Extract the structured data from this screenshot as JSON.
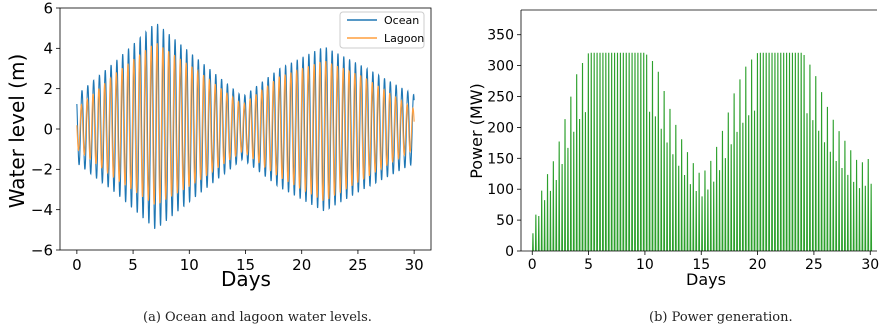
{
  "chart_data": [
    {
      "type": "line",
      "caption": "(a) Ocean and lagoon water levels.",
      "title": "",
      "xlabel": "Days",
      "ylabel": "Water level (m)",
      "xlim": [
        -1.5,
        31.5
      ],
      "ylim": [
        -6,
        6
      ],
      "x_ticks": [
        0,
        5,
        10,
        15,
        20,
        25,
        30
      ],
      "y_ticks": [
        -6,
        -4,
        -2,
        0,
        2,
        4,
        6
      ],
      "legend_position": "top-right",
      "grid": false,
      "series": [
        {
          "name": "Ocean",
          "color": "#1f77b4",
          "wave_period_days": 0.5175,
          "envelope_days": [
            0,
            3.5,
            7,
            10.5,
            14.75,
            18,
            22,
            25.5,
            30
          ],
          "envelope_max": [
            1.7,
            3.4,
            5.3,
            3.6,
            1.6,
            3.0,
            4.1,
            3.1,
            1.7
          ],
          "envelope_min": [
            -1.7,
            -3.2,
            -5.0,
            -3.4,
            -1.5,
            -2.9,
            -4.1,
            -3.0,
            -1.7
          ]
        },
        {
          "name": "Lagoon",
          "color": "#ff9f3f",
          "wave_period_days": 0.5175,
          "envelope_days": [
            0,
            3.5,
            7,
            10.5,
            14.75,
            18,
            22,
            25.5,
            30
          ],
          "envelope_max": [
            1.0,
            2.8,
            4.3,
            3.0,
            1.2,
            2.6,
            3.4,
            2.6,
            1.0
          ],
          "envelope_min": [
            -1.0,
            -2.5,
            -3.8,
            -2.7,
            -1.1,
            -2.4,
            -3.6,
            -2.5,
            -1.0
          ]
        }
      ]
    },
    {
      "type": "bar",
      "caption": "(b) Power generation.",
      "title": "",
      "xlabel": "Days",
      "ylabel": "Power (MW)",
      "xlim": [
        -1,
        30.6
      ],
      "ylim": [
        0,
        390
      ],
      "x_ticks": [
        0,
        5,
        10,
        15,
        20,
        25,
        30
      ],
      "y_ticks": [
        0,
        50,
        100,
        150,
        200,
        250,
        300,
        350
      ],
      "grid": false,
      "color": "#2ca02c",
      "pulse_spacing_days": 0.2588,
      "cap_mw": 320,
      "envelope_days": [
        0,
        1,
        2,
        3,
        4,
        5,
        7,
        9,
        10,
        11,
        12,
        13,
        14,
        15,
        16,
        17,
        18,
        19,
        20,
        22,
        24,
        25,
        26,
        27,
        28,
        29,
        30
      ],
      "envelope_mw": [
        35,
        110,
        150,
        220,
        290,
        320,
        320,
        320,
        320,
        300,
        240,
        190,
        150,
        120,
        150,
        200,
        260,
        300,
        320,
        320,
        320,
        290,
        240,
        200,
        170,
        140,
        150
      ]
    }
  ]
}
